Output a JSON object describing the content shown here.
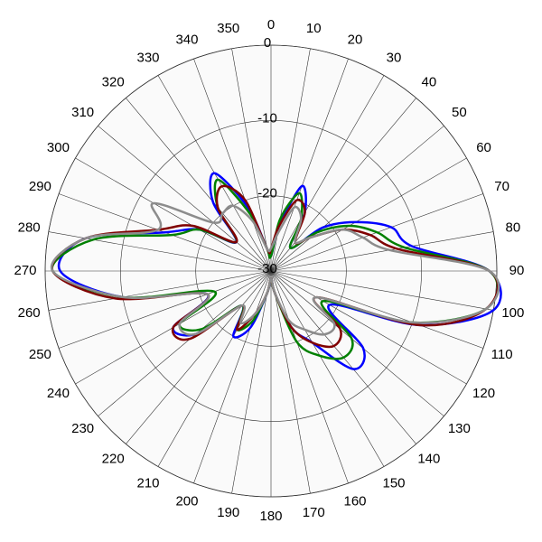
{
  "chart_data": {
    "type": "polar",
    "rlim": [
      -30,
      0
    ],
    "rticks": [
      0,
      -10,
      -20,
      -30
    ],
    "thetaticks": [
      0,
      10,
      20,
      30,
      40,
      50,
      60,
      70,
      80,
      90,
      100,
      110,
      120,
      130,
      140,
      150,
      160,
      170,
      180,
      190,
      200,
      210,
      220,
      230,
      240,
      250,
      260,
      270,
      280,
      290,
      300,
      310,
      320,
      330,
      340,
      350
    ],
    "theta": [
      0,
      10,
      20,
      30,
      40,
      50,
      60,
      70,
      80,
      90,
      100,
      110,
      120,
      130,
      140,
      150,
      160,
      170,
      180,
      190,
      200,
      210,
      220,
      230,
      240,
      250,
      260,
      270,
      280,
      290,
      300,
      310,
      320,
      330,
      340,
      350
    ],
    "grid": true,
    "series": [
      {
        "color": "#0000ff",
        "values": [
          -28,
          -24,
          -18,
          -21,
          -26,
          -21,
          -17,
          -13,
          -11,
          -1,
          0,
          -9,
          -21,
          -14,
          -13,
          -19,
          -22,
          -27,
          -29,
          -27,
          -22,
          -20,
          -24,
          -17,
          -15,
          -21,
          -10,
          -2,
          -5,
          -15,
          -19,
          -24,
          -18,
          -15,
          -21,
          -27
        ]
      },
      {
        "color": "#008000",
        "values": [
          -28,
          -23,
          -19,
          -22,
          -26,
          -22,
          -18,
          -15,
          -12,
          -1,
          -1,
          -10,
          -22,
          -16,
          -15,
          -17,
          -20,
          -27,
          -29,
          -27,
          -23,
          -21,
          -24,
          -18,
          -16,
          -22,
          -10,
          -1,
          -6,
          -16,
          -19,
          -24,
          -19,
          -16,
          -22,
          -27
        ]
      },
      {
        "color": "#800000",
        "values": [
          -27,
          -24,
          -20,
          -21,
          -25,
          -23,
          -19,
          -16,
          -13,
          -1,
          -1,
          -9,
          -23,
          -18,
          -17,
          -19,
          -22,
          -27,
          -29,
          -27,
          -24,
          -21,
          -24,
          -16,
          -15,
          -21,
          -9,
          -1,
          -5,
          -14,
          -18,
          -24,
          -19,
          -17,
          -20,
          -27
        ]
      },
      {
        "color": "#8c8c8c",
        "values": [
          -27,
          -25,
          -21,
          -22,
          -25,
          -23,
          -19,
          -17,
          -14,
          -1,
          -1,
          -10,
          -23,
          -19,
          -19,
          -21,
          -23,
          -27,
          -29,
          -27,
          -24,
          -22,
          -24,
          -17,
          -16,
          -21,
          -10,
          -1,
          -5,
          -14,
          -12,
          -20,
          -20,
          -20,
          -23,
          -27
        ]
      }
    ]
  }
}
